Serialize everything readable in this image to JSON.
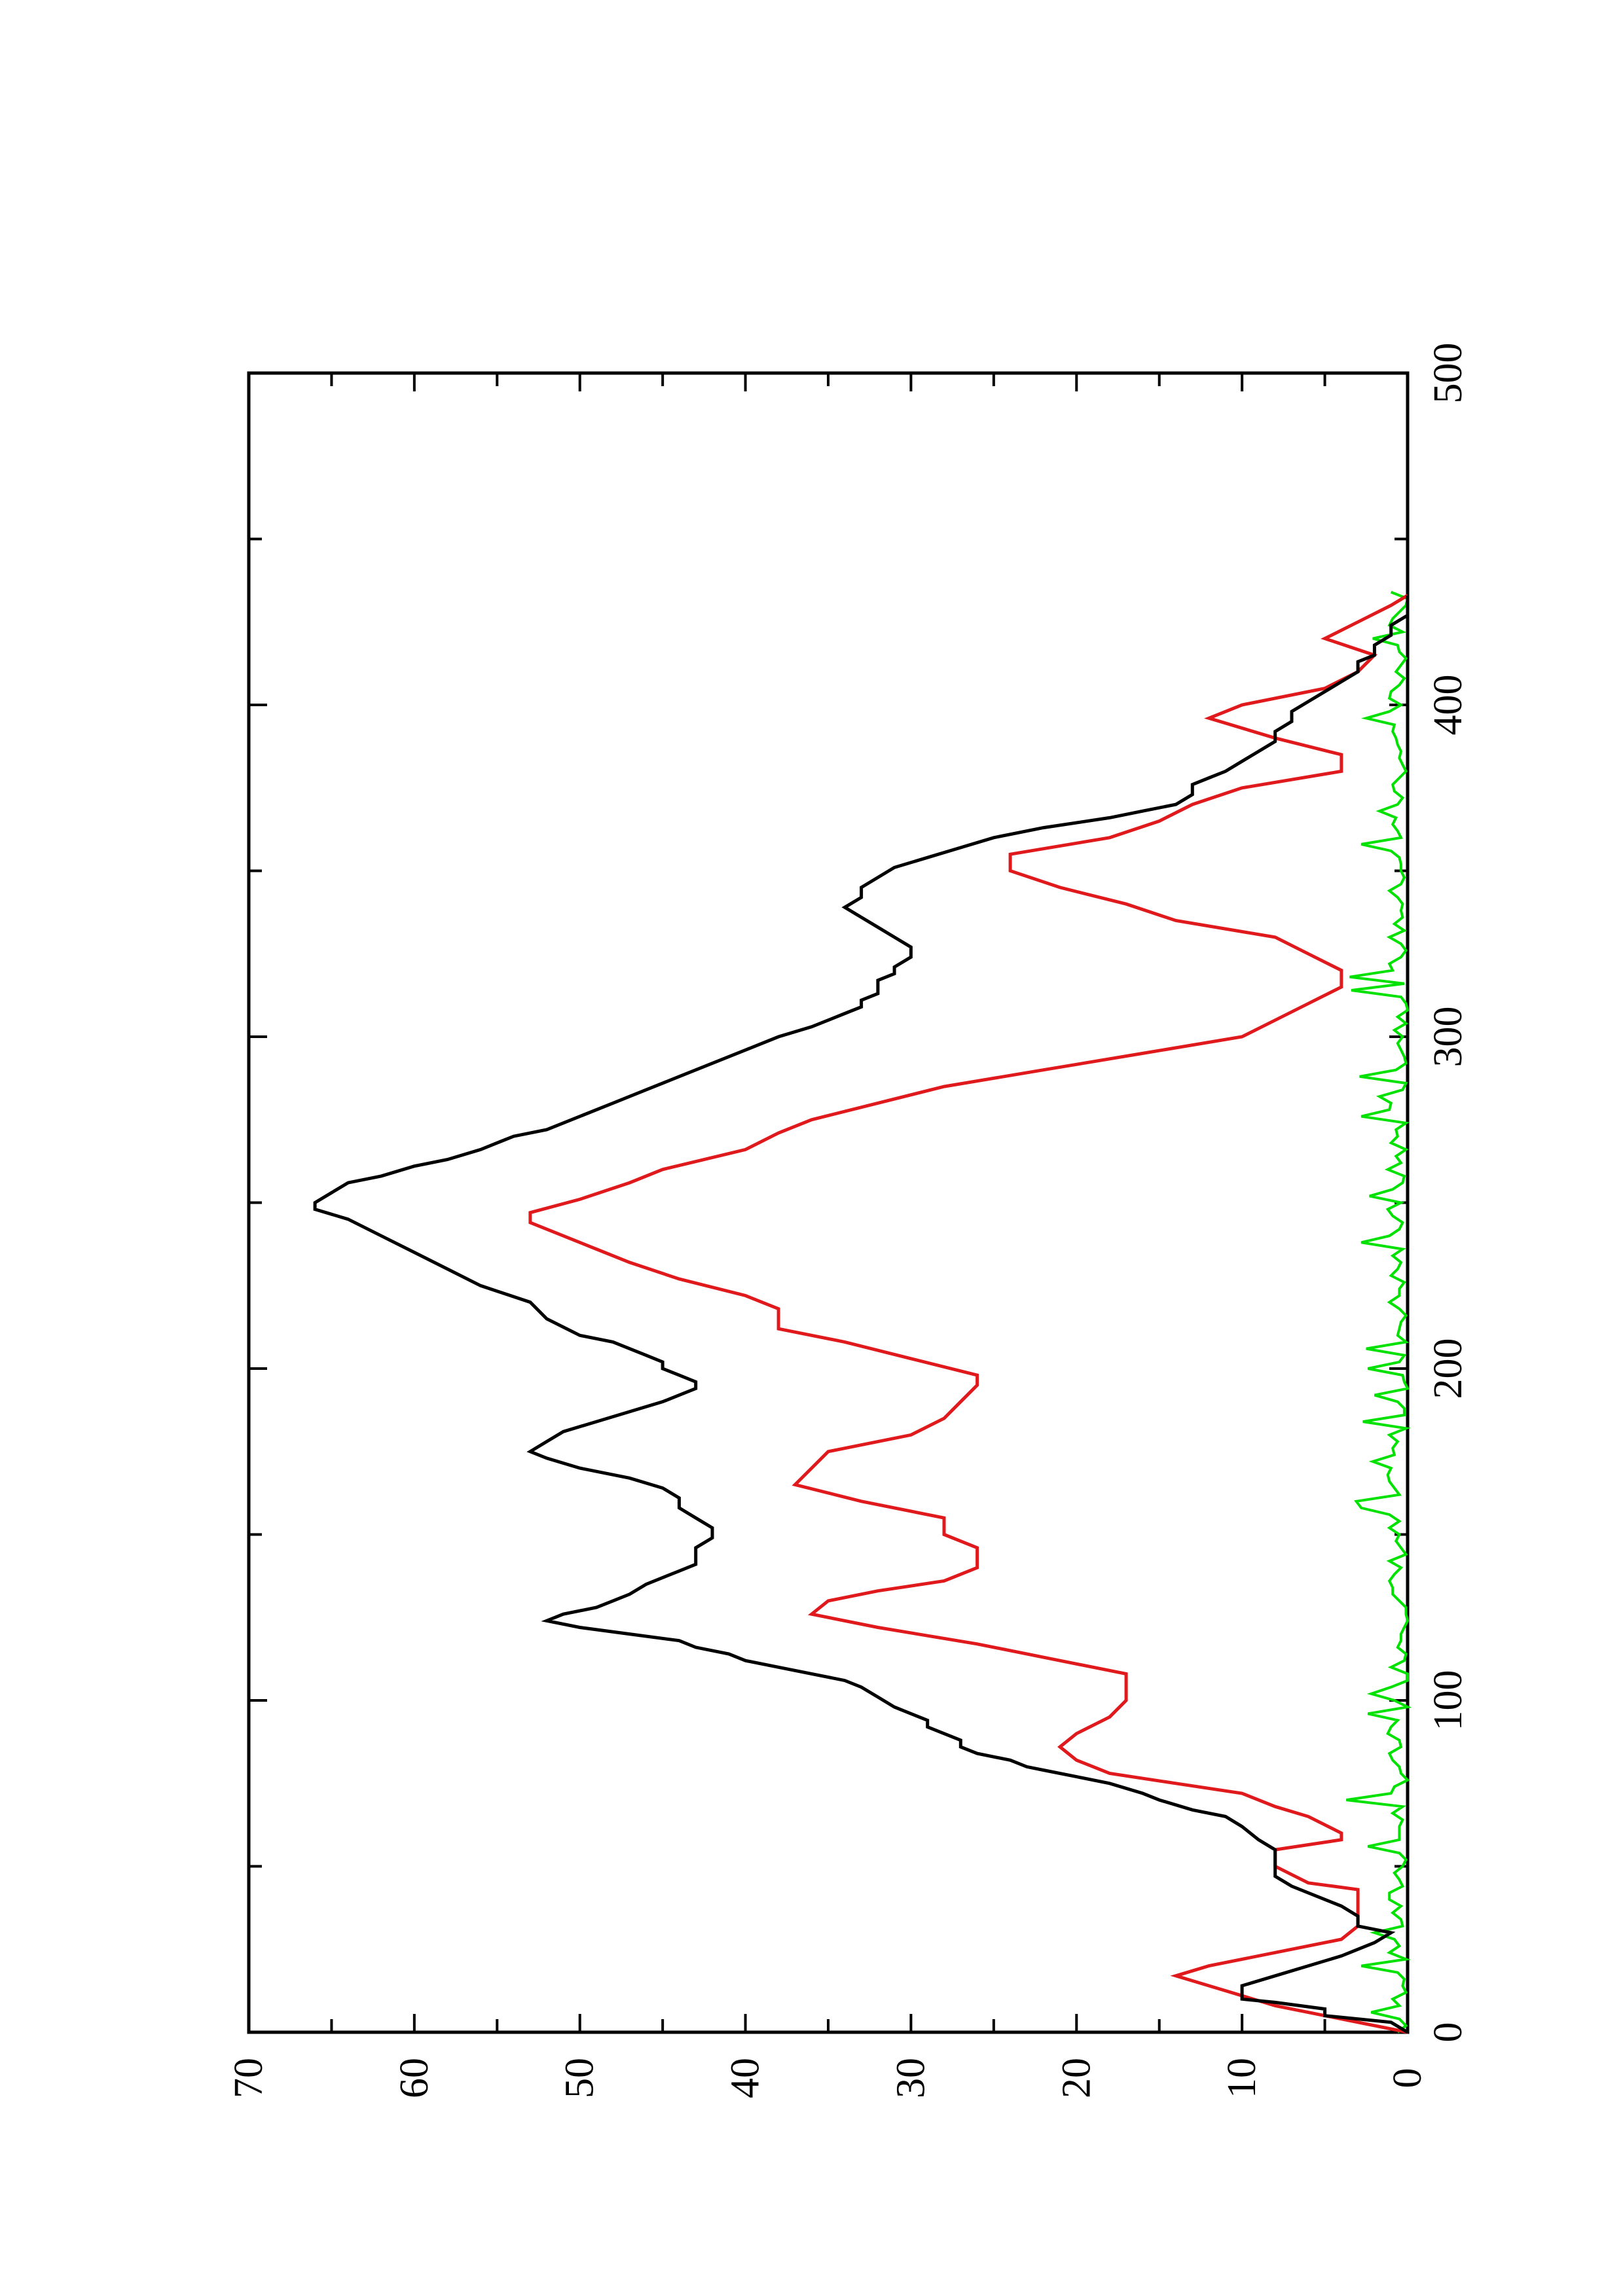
{
  "chart_data": {
    "type": "line",
    "title": "",
    "xlabel": "",
    "ylabel": "",
    "orientation": "rotated 90 degrees counter-clockwise",
    "xlim": [
      0,
      500
    ],
    "ylim": [
      0,
      70
    ],
    "x_ticks": [
      0,
      100,
      200,
      300,
      400,
      500
    ],
    "x_minor_ticks": [
      50,
      150,
      250,
      350,
      450
    ],
    "y_ticks": [
      0,
      10,
      20,
      30,
      40,
      50,
      60,
      70
    ],
    "y_minor_ticks": [
      5,
      15,
      25,
      35,
      45,
      55,
      65
    ],
    "grid": false,
    "legend": "none",
    "series": [
      {
        "color": "#000000",
        "points": [
          [
            0,
            0
          ],
          [
            3,
            1
          ],
          [
            5,
            5
          ],
          [
            7,
            5
          ],
          [
            9,
            8
          ],
          [
            10,
            10
          ],
          [
            14,
            10
          ],
          [
            17,
            8
          ],
          [
            20,
            6
          ],
          [
            23,
            4
          ],
          [
            27,
            2
          ],
          [
            30,
            1
          ],
          [
            32,
            3
          ],
          [
            35,
            3
          ],
          [
            38,
            4
          ],
          [
            40,
            5
          ],
          [
            44,
            7
          ],
          [
            47,
            8
          ],
          [
            52,
            8
          ],
          [
            55,
            8
          ],
          [
            58,
            9
          ],
          [
            62,
            10
          ],
          [
            65,
            11
          ],
          [
            67,
            13
          ],
          [
            70,
            15
          ],
          [
            72,
            16
          ],
          [
            75,
            18
          ],
          [
            77,
            20
          ],
          [
            79,
            22
          ],
          [
            80,
            23
          ],
          [
            82,
            24
          ],
          [
            84,
            26
          ],
          [
            86,
            27
          ],
          [
            88,
            27
          ],
          [
            90,
            28
          ],
          [
            92,
            29
          ],
          [
            94,
            29
          ],
          [
            96,
            30
          ],
          [
            98,
            31
          ],
          [
            101,
            32
          ],
          [
            104,
            33
          ],
          [
            106,
            34
          ],
          [
            108,
            36
          ],
          [
            110,
            38
          ],
          [
            112,
            40
          ],
          [
            114,
            41
          ],
          [
            116,
            43
          ],
          [
            118,
            44
          ],
          [
            120,
            47
          ],
          [
            122,
            50
          ],
          [
            124,
            52
          ],
          [
            126,
            51
          ],
          [
            128,
            49
          ],
          [
            130,
            48
          ],
          [
            132,
            47
          ],
          [
            135,
            46
          ],
          [
            137,
            45
          ],
          [
            139,
            44
          ],
          [
            141,
            43
          ],
          [
            143,
            43
          ],
          [
            146,
            43
          ],
          [
            149,
            42
          ],
          [
            152,
            42
          ],
          [
            155,
            43
          ],
          [
            158,
            44
          ],
          [
            161,
            44
          ],
          [
            164,
            45
          ],
          [
            167,
            47
          ],
          [
            170,
            50
          ],
          [
            173,
            52
          ],
          [
            175,
            53
          ],
          [
            178,
            52
          ],
          [
            181,
            51
          ],
          [
            184,
            49
          ],
          [
            187,
            47
          ],
          [
            190,
            45
          ],
          [
            192,
            44
          ],
          [
            194,
            43
          ],
          [
            196,
            43
          ],
          [
            198,
            44
          ],
          [
            200,
            45
          ],
          [
            202,
            45
          ],
          [
            204,
            46
          ],
          [
            206,
            47
          ],
          [
            208,
            48
          ],
          [
            210,
            50
          ],
          [
            215,
            52
          ],
          [
            220,
            53
          ],
          [
            225,
            56
          ],
          [
            230,
            58
          ],
          [
            235,
            60
          ],
          [
            240,
            62
          ],
          [
            245,
            64
          ],
          [
            248,
            66
          ],
          [
            250,
            66
          ],
          [
            253,
            65
          ],
          [
            256,
            64
          ],
          [
            258,
            62
          ],
          [
            261,
            60
          ],
          [
            263,
            58
          ],
          [
            266,
            56
          ],
          [
            268,
            55
          ],
          [
            270,
            54
          ],
          [
            272,
            52
          ],
          [
            276,
            50
          ],
          [
            280,
            48
          ],
          [
            284,
            46
          ],
          [
            288,
            44
          ],
          [
            292,
            42
          ],
          [
            296,
            40
          ],
          [
            300,
            38
          ],
          [
            303,
            36
          ],
          [
            305,
            35
          ],
          [
            307,
            34
          ],
          [
            309,
            33
          ],
          [
            311,
            33
          ],
          [
            313,
            32
          ],
          [
            315,
            32
          ],
          [
            317,
            32
          ],
          [
            319,
            31
          ],
          [
            321,
            31
          ],
          [
            324,
            30
          ],
          [
            327,
            30
          ],
          [
            330,
            31
          ],
          [
            333,
            32
          ],
          [
            336,
            33
          ],
          [
            339,
            34
          ],
          [
            342,
            33
          ],
          [
            345,
            33
          ],
          [
            348,
            32
          ],
          [
            351,
            31
          ],
          [
            354,
            29
          ],
          [
            357,
            27
          ],
          [
            360,
            25
          ],
          [
            363,
            22
          ],
          [
            366,
            18
          ],
          [
            368,
            16
          ],
          [
            370,
            14
          ],
          [
            373,
            13
          ],
          [
            376,
            13
          ],
          [
            378,
            12
          ],
          [
            380,
            11
          ],
          [
            383,
            10
          ],
          [
            386,
            9
          ],
          [
            389,
            8
          ],
          [
            392,
            8
          ],
          [
            395,
            7
          ],
          [
            398,
            7
          ],
          [
            401,
            6
          ],
          [
            404,
            5
          ],
          [
            407,
            4
          ],
          [
            410,
            3
          ],
          [
            413,
            3
          ],
          [
            415,
            2
          ],
          [
            418,
            2
          ],
          [
            421,
            1
          ],
          [
            424,
            1
          ],
          [
            427,
            0
          ],
          [
            430,
            0
          ],
          [
            433,
            0
          ]
        ]
      },
      {
        "color": "#e0191c",
        "points": [
          [
            0,
            0
          ],
          [
            3,
            3
          ],
          [
            5,
            5
          ],
          [
            8,
            8
          ],
          [
            11,
            10
          ],
          [
            14,
            12
          ],
          [
            17,
            14
          ],
          [
            20,
            12
          ],
          [
            24,
            8
          ],
          [
            28,
            4
          ],
          [
            32,
            3
          ],
          [
            38,
            3
          ],
          [
            40,
            3
          ],
          [
            43,
            3
          ],
          [
            45,
            6
          ],
          [
            50,
            8
          ],
          [
            55,
            8
          ],
          [
            58,
            4
          ],
          [
            60,
            4
          ],
          [
            65,
            6
          ],
          [
            68,
            8
          ],
          [
            72,
            10
          ],
          [
            75,
            14
          ],
          [
            78,
            18
          ],
          [
            82,
            20
          ],
          [
            86,
            21
          ],
          [
            90,
            20
          ],
          [
            95,
            18
          ],
          [
            100,
            17
          ],
          [
            105,
            17
          ],
          [
            108,
            17
          ],
          [
            112,
            21
          ],
          [
            117,
            26
          ],
          [
            122,
            32
          ],
          [
            126,
            36
          ],
          [
            130,
            35
          ],
          [
            133,
            32
          ],
          [
            136,
            28
          ],
          [
            140,
            26
          ],
          [
            146,
            26
          ],
          [
            150,
            28
          ],
          [
            155,
            28
          ],
          [
            160,
            33
          ],
          [
            165,
            37
          ],
          [
            170,
            36
          ],
          [
            175,
            35
          ],
          [
            180,
            30
          ],
          [
            185,
            28
          ],
          [
            190,
            27
          ],
          [
            195,
            26
          ],
          [
            198,
            26
          ],
          [
            203,
            30
          ],
          [
            208,
            34
          ],
          [
            212,
            38
          ],
          [
            218,
            38
          ],
          [
            222,
            40
          ],
          [
            227,
            44
          ],
          [
            232,
            47
          ],
          [
            236,
            49
          ],
          [
            240,
            51
          ],
          [
            244,
            53
          ],
          [
            247,
            53
          ],
          [
            251,
            50
          ],
          [
            256,
            47
          ],
          [
            260,
            45
          ],
          [
            266,
            40
          ],
          [
            271,
            38
          ],
          [
            275,
            36
          ],
          [
            280,
            32
          ],
          [
            285,
            28
          ],
          [
            290,
            22
          ],
          [
            295,
            16
          ],
          [
            300,
            10
          ],
          [
            305,
            8
          ],
          [
            310,
            6
          ],
          [
            315,
            4
          ],
          [
            320,
            4
          ],
          [
            325,
            6
          ],
          [
            330,
            8
          ],
          [
            335,
            14
          ],
          [
            340,
            17
          ],
          [
            345,
            21
          ],
          [
            350,
            24
          ],
          [
            355,
            24
          ],
          [
            360,
            18
          ],
          [
            365,
            15
          ],
          [
            370,
            13
          ],
          [
            375,
            10
          ],
          [
            380,
            4
          ],
          [
            385,
            4
          ],
          [
            390,
            8
          ],
          [
            396,
            12
          ],
          [
            400,
            10
          ],
          [
            405,
            5
          ],
          [
            410,
            3
          ],
          [
            415,
            2
          ],
          [
            420,
            5
          ],
          [
            425,
            3
          ],
          [
            430,
            1
          ],
          [
            433,
            0
          ]
        ]
      },
      {
        "color": "#00e100",
        "points": []
      }
    ]
  }
}
